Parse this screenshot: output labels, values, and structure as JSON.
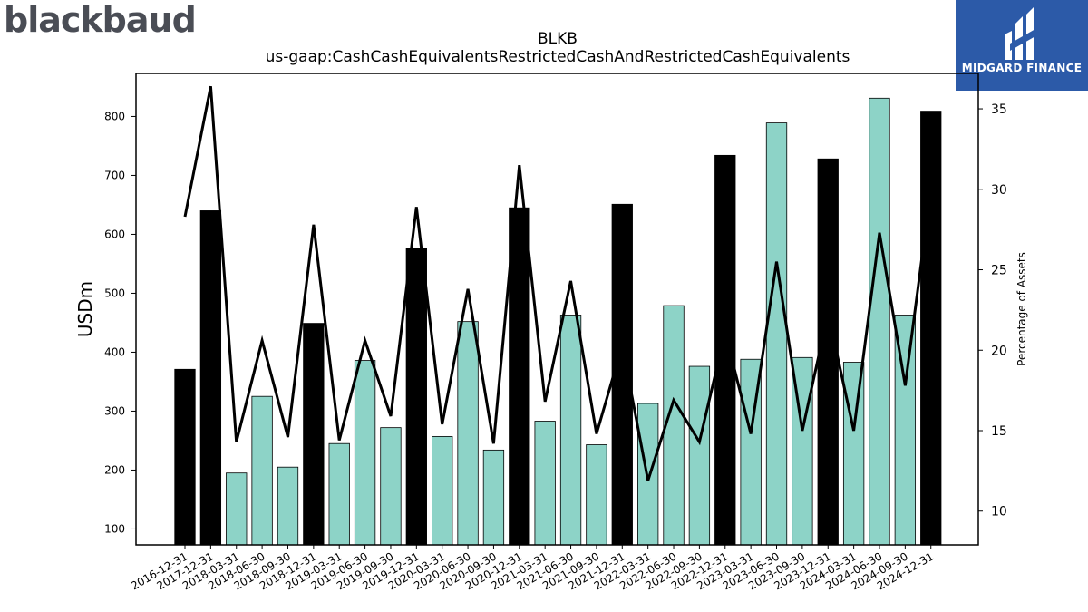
{
  "branding": {
    "left_logo_text": "blackbaud",
    "right_logo_text": "MIDGARD FINANCE"
  },
  "colors": {
    "annual_bar": "#000000",
    "quarter_bar": "#8dd3c7",
    "line": "#000000",
    "logo_right_bg": "#2c5aa8",
    "logo_left_text": "#4a4d55"
  },
  "chart_data": {
    "type": "bar",
    "title": "BLKB",
    "subtitle": "us-gaap:CashCashEquivalentsRestrictedCashAndRestrictedCashEquivalents",
    "ylabel": "USDm",
    "y2label": "Percentage of Assets",
    "ylim": [
      73,
      873
    ],
    "y2lim": [
      7.9,
      37.2
    ],
    "yticks": [
      100,
      200,
      300,
      400,
      500,
      600,
      700,
      800
    ],
    "y2ticks": [
      10,
      15,
      20,
      25,
      30,
      35
    ],
    "categories": [
      "2016-12-31",
      "2017-12-31",
      "2018-03-31",
      "2018-06-30",
      "2018-09-30",
      "2018-12-31",
      "2019-03-31",
      "2019-06-30",
      "2019-09-30",
      "2019-12-31",
      "2020-03-31",
      "2020-06-30",
      "2020-09-30",
      "2020-12-31",
      "2021-03-31",
      "2021-06-30",
      "2021-09-30",
      "2021-12-31",
      "2022-03-31",
      "2022-06-30",
      "2022-09-30",
      "2022-12-31",
      "2023-03-31",
      "2023-06-30",
      "2023-09-30",
      "2023-12-31",
      "2024-03-31",
      "2024-06-30",
      "2024-09-30",
      "2024-12-31"
    ],
    "annual": [
      true,
      true,
      false,
      false,
      false,
      true,
      false,
      false,
      false,
      true,
      false,
      false,
      false,
      true,
      false,
      false,
      false,
      true,
      false,
      false,
      false,
      true,
      false,
      false,
      false,
      true,
      false,
      false,
      false,
      true
    ],
    "series": [
      {
        "values": [
          371,
          640,
          195,
          325,
          205,
          449,
          245,
          386,
          272,
          577,
          257,
          452,
          234,
          645,
          283,
          463,
          243,
          651,
          313,
          479,
          376,
          734,
          388,
          789,
          391,
          728,
          383,
          831,
          463,
          809
        ]
      },
      {
        "axis": "right",
        "values": [
          28.3,
          36.4,
          14.3,
          20.6,
          14.6,
          27.8,
          14.4,
          20.6,
          15.9,
          28.9,
          15.4,
          23.8,
          14.2,
          31.5,
          16.8,
          24.3,
          14.8,
          20.3,
          11.9,
          16.9,
          14.3,
          21.1,
          14.8,
          25.5,
          15.0,
          22.3,
          15.0,
          27.3,
          17.8,
          30.0
        ]
      }
    ],
    "grid": false,
    "legend": "none"
  }
}
